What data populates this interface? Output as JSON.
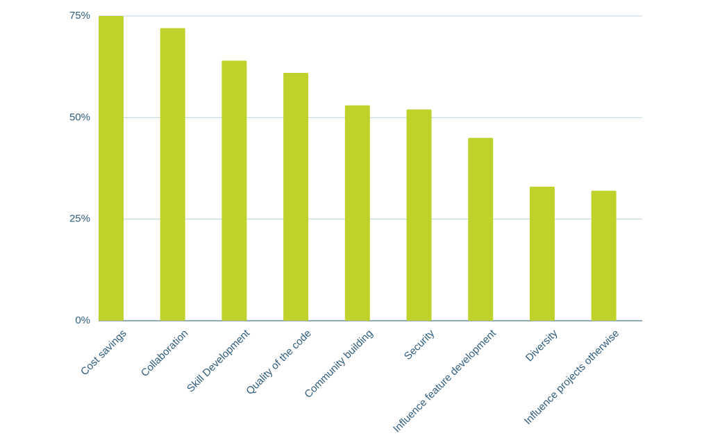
{
  "chart_data": {
    "type": "bar",
    "categories": [
      "Cost savings",
      "Collaboration",
      "Skill Development",
      "Quality of the code",
      "Community building",
      "Security",
      "Influence feature development",
      "Diversity",
      "Influence projects otherwise"
    ],
    "values": [
      75,
      72,
      64,
      61,
      53,
      52,
      45,
      33,
      32
    ],
    "color": "#bfd12b",
    "ylim": [
      0,
      75
    ],
    "yticks": [
      {
        "value": 0,
        "label": "0%"
      },
      {
        "value": 25,
        "label": "25%"
      },
      {
        "value": 50,
        "label": "50%"
      },
      {
        "value": 75,
        "label": "75%"
      }
    ],
    "grid": true
  }
}
